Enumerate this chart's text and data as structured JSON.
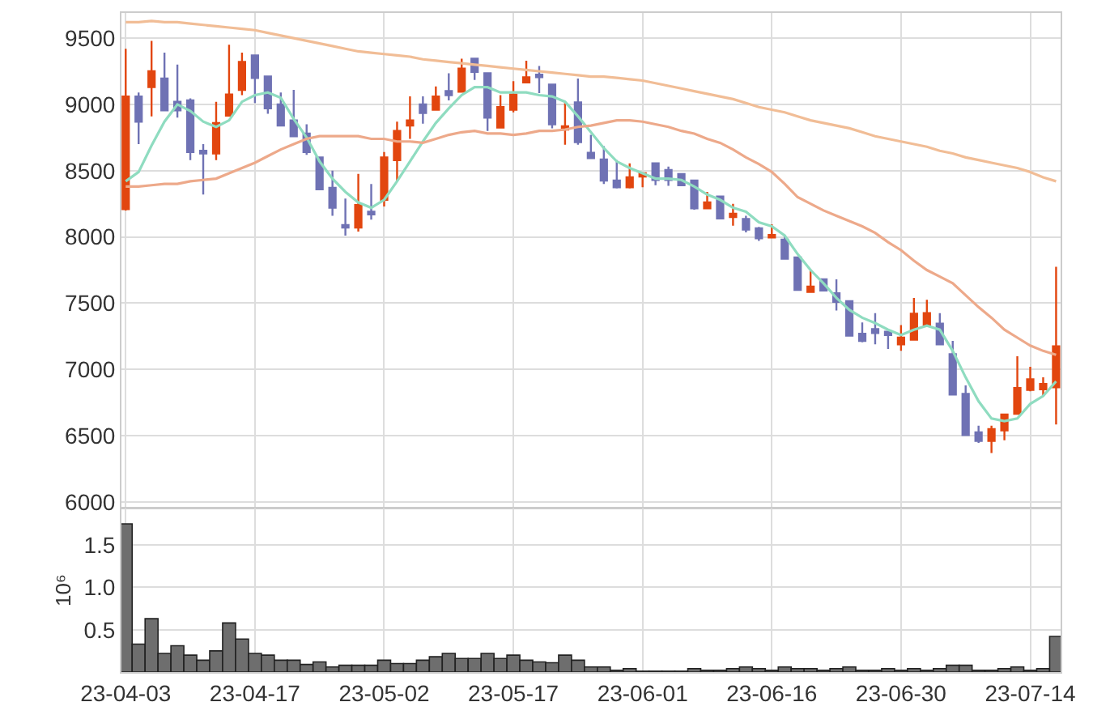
{
  "chart_data": [
    {
      "type": "candlestick",
      "categories": [
        "23-04-03",
        null,
        null,
        null,
        null,
        null,
        null,
        null,
        null,
        null,
        "23-04-17",
        null,
        null,
        null,
        null,
        null,
        null,
        null,
        null,
        null,
        "23-05-02",
        null,
        null,
        null,
        null,
        null,
        null,
        null,
        null,
        null,
        "23-05-17",
        null,
        null,
        null,
        null,
        null,
        null,
        null,
        null,
        null,
        "23-06-01",
        null,
        null,
        null,
        null,
        null,
        null,
        null,
        null,
        null,
        "23-06-16",
        null,
        null,
        null,
        null,
        null,
        null,
        null,
        null,
        null,
        "23-06-30",
        null,
        null,
        null,
        null,
        null,
        null,
        null,
        null,
        null,
        "23-07-14",
        null,
        null
      ],
      "ohlc": [
        [
          8210,
          9420,
          8200,
          9060
        ],
        [
          9060,
          9090,
          8700,
          8870
        ],
        [
          9130,
          9480,
          8910,
          9250
        ],
        [
          9195,
          9390,
          8955,
          8955
        ],
        [
          9020,
          9300,
          8900,
          8955
        ],
        [
          9030,
          9045,
          8580,
          8640
        ],
        [
          8650,
          8700,
          8320,
          8630
        ],
        [
          8630,
          9020,
          8580,
          8860
        ],
        [
          8915,
          9450,
          8915,
          9075
        ],
        [
          9110,
          9390,
          9070,
          9320
        ],
        [
          9370,
          9370,
          9010,
          9200
        ],
        [
          9210,
          9210,
          8930,
          8970
        ],
        [
          9000,
          9090,
          8840,
          8840
        ],
        [
          8880,
          9110,
          8760,
          8760
        ],
        [
          8780,
          8850,
          8620,
          8640
        ],
        [
          8600,
          8600,
          8360,
          8360
        ],
        [
          8370,
          8500,
          8160,
          8220
        ],
        [
          8090,
          8290,
          8010,
          8070
        ],
        [
          8070,
          8475,
          8040,
          8240
        ],
        [
          8190,
          8400,
          8130,
          8170
        ],
        [
          8280,
          8640,
          8230,
          8600
        ],
        [
          8580,
          8870,
          8420,
          8800
        ],
        [
          8840,
          9060,
          8740,
          8880
        ],
        [
          9000,
          9060,
          8855,
          8935
        ],
        [
          8960,
          9135,
          8960,
          9060
        ],
        [
          9100,
          9235,
          9030,
          9070
        ],
        [
          9095,
          9345,
          9095,
          9270
        ],
        [
          9345,
          9345,
          9185,
          9245
        ],
        [
          9235,
          9235,
          8800,
          8900
        ],
        [
          8825,
          9070,
          8820,
          8980
        ],
        [
          8960,
          9175,
          8940,
          9075
        ],
        [
          9165,
          9330,
          9165,
          9205
        ],
        [
          9225,
          9290,
          9085,
          9205
        ],
        [
          9150,
          9150,
          8820,
          8850
        ],
        [
          8810,
          9010,
          8695,
          8835
        ],
        [
          9015,
          9195,
          8695,
          8715
        ],
        [
          8635,
          8770,
          8595,
          8595
        ],
        [
          8585,
          8685,
          8400,
          8425
        ],
        [
          8425,
          8580,
          8365,
          8375
        ],
        [
          8375,
          8555,
          8365,
          8450
        ],
        [
          8455,
          8480,
          8375,
          8480
        ],
        [
          8555,
          8555,
          8390,
          8430
        ],
        [
          8505,
          8530,
          8385,
          8430
        ],
        [
          8475,
          8475,
          8390,
          8390
        ],
        [
          8425,
          8425,
          8205,
          8215
        ],
        [
          8215,
          8340,
          8215,
          8260
        ],
        [
          8305,
          8305,
          8135,
          8140
        ],
        [
          8150,
          8250,
          8085,
          8175
        ],
        [
          8135,
          8160,
          8035,
          8055
        ],
        [
          8065,
          8075,
          7970,
          7990
        ],
        [
          7995,
          8095,
          7995,
          8015
        ],
        [
          7980,
          8010,
          7835,
          7835
        ],
        [
          7845,
          7845,
          7595,
          7600
        ],
        [
          7585,
          7755,
          7585,
          7625
        ],
        [
          7680,
          7680,
          7595,
          7595
        ],
        [
          7575,
          7680,
          7445,
          7510
        ],
        [
          7515,
          7515,
          7250,
          7255
        ],
        [
          7270,
          7355,
          7205,
          7215
        ],
        [
          7305,
          7425,
          7190,
          7275
        ],
        [
          7285,
          7285,
          7155,
          7260
        ],
        [
          7190,
          7335,
          7140,
          7240
        ],
        [
          7225,
          7540,
          7225,
          7420
        ],
        [
          7330,
          7525,
          7330,
          7425
        ],
        [
          7345,
          7425,
          7190,
          7190
        ],
        [
          7115,
          7215,
          6810,
          6810
        ],
        [
          6815,
          6880,
          6505,
          6505
        ],
        [
          6525,
          6575,
          6445,
          6460
        ],
        [
          6460,
          6575,
          6370,
          6550
        ],
        [
          6540,
          6660,
          6465,
          6660
        ],
        [
          6665,
          7100,
          6665,
          6860
        ],
        [
          6845,
          7020,
          6835,
          6925
        ],
        [
          6850,
          6940,
          6795,
          6890
        ],
        [
          6865,
          7775,
          6585,
          7175
        ]
      ],
      "colors": [
        "#e2460f",
        "#6f72b4",
        "#e2460f",
        "#6f72b4",
        "#6f72b4",
        "#6f72b4",
        "#6f72b4",
        "#e2460f",
        "#e2460f",
        "#e2460f",
        "#6f72b4",
        "#6f72b4",
        "#6f72b4",
        "#6f72b4",
        "#6f72b4",
        "#6f72b4",
        "#6f72b4",
        "#6f72b4",
        "#e2460f",
        "#6f72b4",
        "#e2460f",
        "#e2460f",
        "#e2460f",
        "#6f72b4",
        "#e2460f",
        "#6f72b4",
        "#e2460f",
        "#6f72b4",
        "#6f72b4",
        "#e2460f",
        "#e2460f",
        "#e2460f",
        "#6f72b4",
        "#6f72b4",
        "#e2460f",
        "#6f72b4",
        "#6f72b4",
        "#6f72b4",
        "#6f72b4",
        "#e2460f",
        "#e2460f",
        "#6f72b4",
        "#6f72b4",
        "#6f72b4",
        "#6f72b4",
        "#e2460f",
        "#6f72b4",
        "#e2460f",
        "#6f72b4",
        "#6f72b4",
        "#e2460f",
        "#6f72b4",
        "#6f72b4",
        "#e2460f",
        "#6f72b4",
        "#6f72b4",
        "#6f72b4",
        "#6f72b4",
        "#6f72b4",
        "#6f72b4",
        "#e2460f",
        "#e2460f",
        "#e2460f",
        "#6f72b4",
        "#6f72b4",
        "#6f72b4",
        "#6f72b4",
        "#e2460f",
        "#e2460f",
        "#e2460f",
        "#e2460f",
        "#e2460f",
        "#e2460f"
      ],
      "series": [
        {
          "type": "line",
          "color": "#8fdcc0",
          "values": [
            8420,
            8490,
            8690,
            8870,
            9000,
            8950,
            8870,
            8830,
            8880,
            9020,
            9070,
            9090,
            9050,
            8890,
            8750,
            8570,
            8440,
            8340,
            8260,
            8220,
            8280,
            8420,
            8570,
            8720,
            8860,
            8970,
            9070,
            9130,
            9130,
            9090,
            9090,
            9090,
            9070,
            9060,
            9020,
            8910,
            8790,
            8670,
            8570,
            8520,
            8480,
            8440,
            8440,
            8430,
            8380,
            8320,
            8280,
            8220,
            8190,
            8110,
            8080,
            8010,
            7870,
            7750,
            7650,
            7540,
            7450,
            7390,
            7350,
            7300,
            7260,
            7300,
            7330,
            7300,
            7140,
            6940,
            6760,
            6630,
            6610,
            6630,
            6740,
            6800,
            6910
          ]
        },
        {
          "type": "line",
          "color": "#f1bd96",
          "values": [
            9620,
            9620,
            9630,
            9620,
            9620,
            9610,
            9600,
            9590,
            9580,
            9570,
            9560,
            9540,
            9520,
            9500,
            9480,
            9460,
            9440,
            9420,
            9400,
            9390,
            9380,
            9370,
            9360,
            9340,
            9330,
            9320,
            9310,
            9300,
            9290,
            9280,
            9270,
            9260,
            9250,
            9240,
            9230,
            9220,
            9210,
            9210,
            9200,
            9190,
            9180,
            9160,
            9140,
            9120,
            9100,
            9080,
            9060,
            9040,
            9010,
            8980,
            8960,
            8940,
            8910,
            8880,
            8860,
            8840,
            8820,
            8790,
            8760,
            8740,
            8720,
            8700,
            8680,
            8650,
            8630,
            8600,
            8580,
            8560,
            8540,
            8520,
            8490,
            8450,
            8420
          ]
        },
        {
          "type": "line",
          "color": "#eda98a",
          "values": [
            8380,
            8380,
            8390,
            8400,
            8400,
            8420,
            8430,
            8440,
            8480,
            8520,
            8560,
            8610,
            8660,
            8700,
            8740,
            8760,
            8760,
            8760,
            8760,
            8740,
            8740,
            8720,
            8720,
            8710,
            8740,
            8770,
            8790,
            8800,
            8780,
            8780,
            8770,
            8780,
            8800,
            8800,
            8810,
            8830,
            8840,
            8860,
            8880,
            8880,
            8870,
            8850,
            8830,
            8800,
            8780,
            8740,
            8710,
            8660,
            8600,
            8550,
            8490,
            8400,
            8300,
            8250,
            8200,
            8160,
            8120,
            8080,
            8030,
            7960,
            7900,
            7820,
            7750,
            7700,
            7650,
            7560,
            7470,
            7390,
            7300,
            7240,
            7180,
            7140,
            7110
          ]
        }
      ],
      "ylim": [
        5960,
        9690
      ],
      "yticks": [
        6000,
        6500,
        7000,
        7500,
        8000,
        8500,
        9000,
        9500
      ],
      "grid": true,
      "tick_labels": "y"
    },
    {
      "type": "bar",
      "categories": [
        "23-04-03",
        null,
        null,
        null,
        null,
        null,
        null,
        null,
        null,
        null,
        "23-04-17",
        null,
        null,
        null,
        null,
        null,
        null,
        null,
        null,
        null,
        "23-05-02",
        null,
        null,
        null,
        null,
        null,
        null,
        null,
        null,
        null,
        "23-05-17",
        null,
        null,
        null,
        null,
        null,
        null,
        null,
        null,
        null,
        "23-06-01",
        null,
        null,
        null,
        null,
        null,
        null,
        null,
        null,
        null,
        "23-06-16",
        null,
        null,
        null,
        null,
        null,
        null,
        null,
        null,
        null,
        "23-06-30",
        null,
        null,
        null,
        null,
        null,
        null,
        null,
        null,
        null,
        "23-07-14",
        null,
        null
      ],
      "values": [
        1.75,
        0.33,
        0.63,
        0.22,
        0.31,
        0.2,
        0.14,
        0.25,
        0.58,
        0.39,
        0.22,
        0.2,
        0.14,
        0.14,
        0.09,
        0.12,
        0.06,
        0.08,
        0.08,
        0.08,
        0.14,
        0.1,
        0.1,
        0.14,
        0.18,
        0.22,
        0.16,
        0.16,
        0.22,
        0.16,
        0.2,
        0.14,
        0.12,
        0.11,
        0.2,
        0.14,
        0.06,
        0.06,
        0.02,
        0.04,
        0.01,
        0.01,
        0.01,
        0.01,
        0.04,
        0.02,
        0.02,
        0.04,
        0.06,
        0.04,
        0.02,
        0.06,
        0.04,
        0.04,
        0.02,
        0.04,
        0.06,
        0.02,
        0.02,
        0.04,
        0.02,
        0.04,
        0.02,
        0.04,
        0.08,
        0.08,
        0.02,
        0.02,
        0.04,
        0.06,
        0.02,
        0.04,
        0.42
      ],
      "color": "#6e6e6e",
      "ylabel": "10⁶",
      "ylim": [
        0,
        1.93
      ],
      "yticks": [
        {
          "value": 0.5,
          "label": "0.5"
        },
        {
          "value": 1,
          "label": "1.0"
        },
        {
          "value": 1.5,
          "label": "1.5"
        }
      ],
      "grid": true
    }
  ]
}
